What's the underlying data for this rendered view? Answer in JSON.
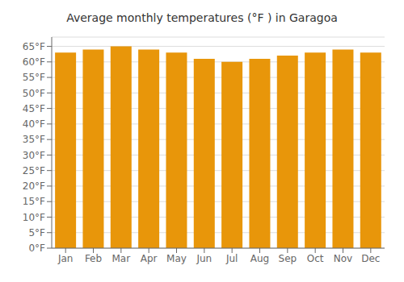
{
  "chart_data": {
    "type": "bar",
    "title": "Average monthly temperatures (°F ) in Garagoa",
    "categories": [
      "Jan",
      "Feb",
      "Mar",
      "Apr",
      "May",
      "Jun",
      "Jul",
      "Aug",
      "Sep",
      "Oct",
      "Nov",
      "Dec"
    ],
    "values": [
      63,
      64,
      65,
      64,
      63,
      61,
      60,
      61,
      62,
      63,
      64,
      63
    ],
    "color": "#E8960A",
    "ylim": [
      0,
      68
    ],
    "yticks": [
      {
        "value": 0,
        "label": "0°F"
      },
      {
        "value": 5,
        "label": "5°F"
      },
      {
        "value": 10,
        "label": "10°F"
      },
      {
        "value": 15,
        "label": "15°F"
      },
      {
        "value": 20,
        "label": "20°F"
      },
      {
        "value": 25,
        "label": "25°F"
      },
      {
        "value": 30,
        "label": "30°F"
      },
      {
        "value": 35,
        "label": "35°F"
      },
      {
        "value": 40,
        "label": "40°F"
      },
      {
        "value": 45,
        "label": "45°F"
      },
      {
        "value": 50,
        "label": "50°F"
      },
      {
        "value": 55,
        "label": "55°F"
      },
      {
        "value": 60,
        "label": "60°F"
      },
      {
        "value": 65,
        "label": "65°F"
      }
    ],
    "grid": true
  }
}
